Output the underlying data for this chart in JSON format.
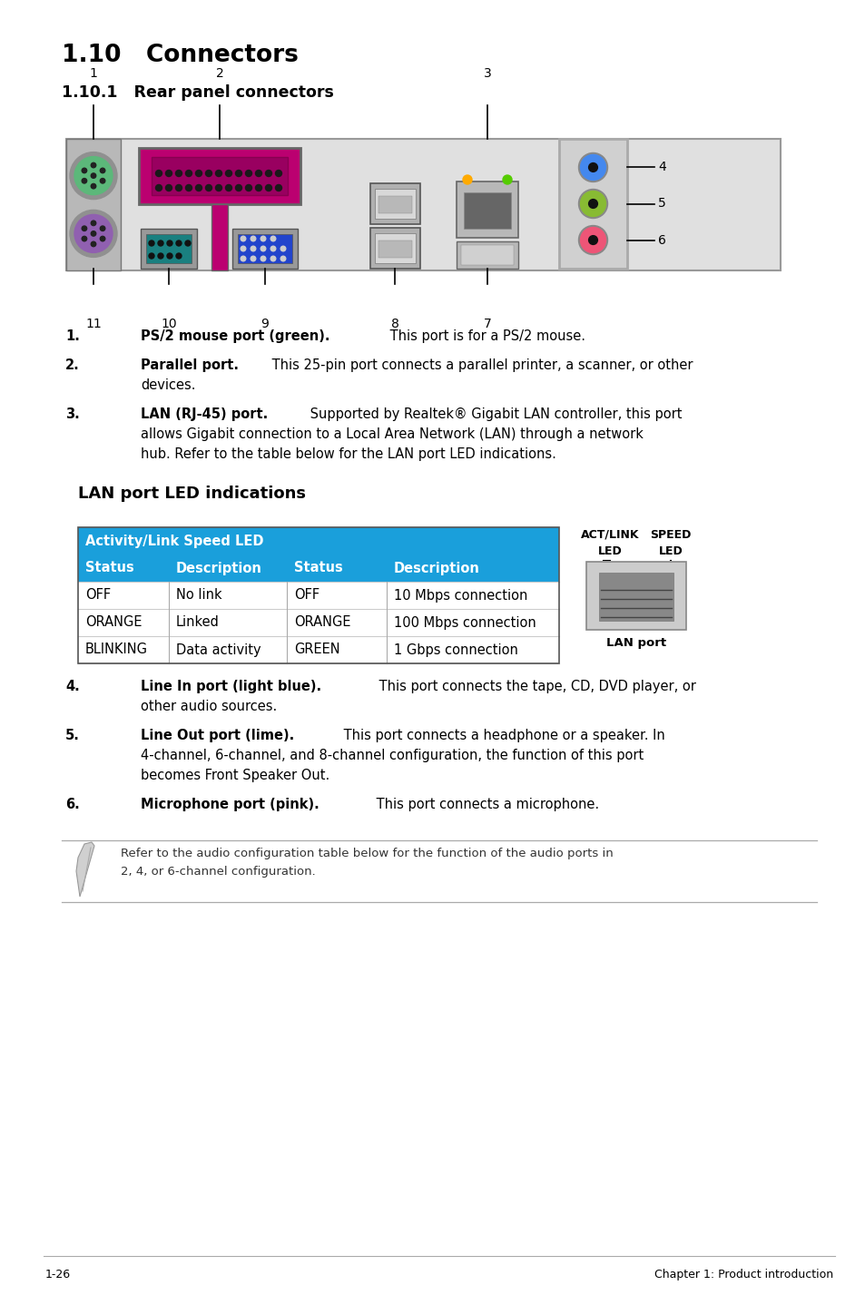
{
  "title": "1.10   Connectors",
  "subtitle": "1.10.1   Rear panel connectors",
  "bg_color": "#ffffff",
  "items_before_table": [
    {
      "num": "1.",
      "bold": "PS/2 mouse port (green).",
      "normal": " This port is for a PS/2 mouse.",
      "extra_lines": []
    },
    {
      "num": "2.",
      "bold": "Parallel port.",
      "normal": " This 25-pin port connects a parallel printer, a scanner, or other",
      "extra_lines": [
        "devices."
      ]
    },
    {
      "num": "3.",
      "bold": "LAN (RJ-45) port.",
      "normal": " Supported by Realtek® Gigabit LAN controller, this port",
      "extra_lines": [
        "allows Gigabit connection to a Local Area Network (LAN) through a network",
        "hub. Refer to the table below for the LAN port LED indications."
      ]
    }
  ],
  "items_after_table": [
    {
      "num": "4.",
      "bold": "Line In port (light blue).",
      "normal": " This port connects the tape, CD, DVD player, or",
      "extra_lines": [
        "other audio sources."
      ]
    },
    {
      "num": "5.",
      "bold": "Line Out port (lime).",
      "normal": " This port connects a headphone or a speaker. In",
      "extra_lines": [
        "4-channel, 6-channel, and 8-channel configuration, the function of this port",
        "becomes Front Speaker Out."
      ]
    },
    {
      "num": "6.",
      "bold": "Microphone port (pink).",
      "normal": " This port connects a microphone.",
      "extra_lines": []
    }
  ],
  "lan_section_title": "LAN port LED indications",
  "table_header_bg": "#1a9fdb",
  "table_header_text": "#ffffff",
  "table_col_header_bg": "#1a9fdb",
  "table_col_header_text": "#ffffff",
  "table_row_bg": "#ffffff",
  "table_header": "Activity/Link Speed LED",
  "table_col_headers": [
    "Status",
    "Description",
    "Status",
    "Description"
  ],
  "table_rows": [
    [
      "OFF",
      "No link",
      "OFF",
      "10 Mbps connection"
    ],
    [
      "ORANGE",
      "Linked",
      "ORANGE",
      "100 Mbps connection"
    ],
    [
      "BLINKING",
      "Data activity",
      "GREEN",
      "1 Gbps connection"
    ]
  ],
  "note_text_line1": "Refer to the audio configuration table below for the function of the audio ports in",
  "note_text_line2": "2, 4, or 6-channel configuration.",
  "footer_left": "1-26",
  "footer_right": "Chapter 1: Product introduction"
}
